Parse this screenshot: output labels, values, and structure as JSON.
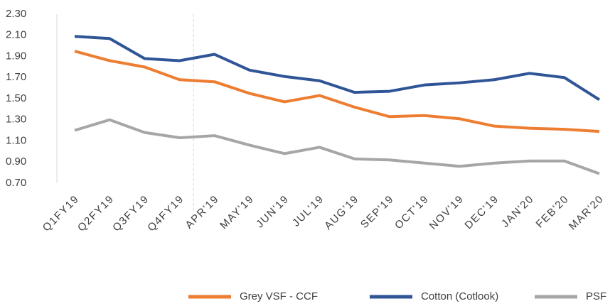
{
  "chart_data": {
    "type": "line",
    "categories": [
      "Q1FY19",
      "Q2FY19",
      "Q3FY19",
      "Q4FY19",
      "APR'19",
      "MAY'19",
      "JUN'19",
      "JUL'19",
      "AUG'19",
      "SEP'19",
      "OCT'19",
      "NOV'19",
      "DEC'19",
      "JAN'20",
      "FEB'20",
      "MAR'20"
    ],
    "series": [
      {
        "name": "Grey VSF - CCF",
        "color": "#ed7d31",
        "values": [
          1.95,
          1.86,
          1.8,
          1.68,
          1.66,
          1.55,
          1.47,
          1.53,
          1.42,
          1.33,
          1.34,
          1.31,
          1.24,
          1.22,
          1.21,
          1.19
        ]
      },
      {
        "name": "Cotton (Cotlook)",
        "color": "#2f5597",
        "values": [
          2.09,
          2.07,
          1.88,
          1.86,
          1.92,
          1.77,
          1.71,
          1.67,
          1.56,
          1.57,
          1.63,
          1.65,
          1.68,
          1.74,
          1.7,
          1.49
        ]
      },
      {
        "name": "PSF",
        "color": "#a6a6a6",
        "values": [
          1.2,
          1.3,
          1.18,
          1.13,
          1.15,
          1.06,
          0.98,
          1.04,
          0.93,
          0.92,
          0.89,
          0.86,
          0.89,
          0.91,
          0.91,
          0.79
        ]
      }
    ],
    "ylim": [
      0.7,
      2.3
    ],
    "yticks": [
      {
        "value": 0.7,
        "label": "0.70"
      },
      {
        "value": 0.9,
        "label": "0.90"
      },
      {
        "value": 1.1,
        "label": "1.10"
      },
      {
        "value": 1.3,
        "label": "1.30"
      },
      {
        "value": 1.5,
        "label": "1.50"
      },
      {
        "value": 1.7,
        "label": "1.70"
      },
      {
        "value": 1.9,
        "label": "1.90"
      },
      {
        "value": 2.1,
        "label": "2.10"
      },
      {
        "value": 2.3,
        "label": "2.30"
      }
    ],
    "grid": false,
    "legend": "bottom"
  }
}
